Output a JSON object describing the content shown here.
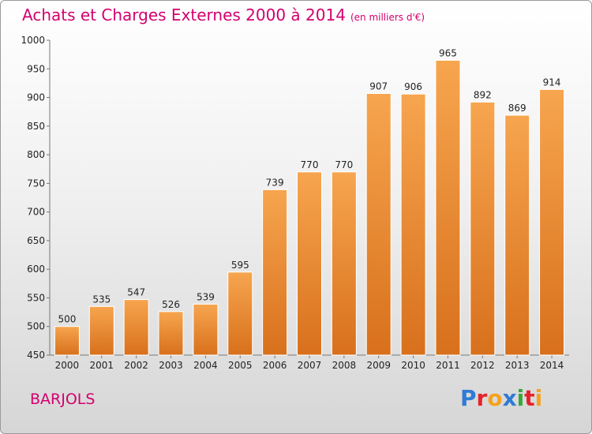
{
  "header": {
    "title": "Achats et Charges Externes 2000 à 2014",
    "subtitle": "(en milliers d'€)"
  },
  "footer": {
    "commune": "BARJOLS",
    "logo_letters": [
      "P",
      "r",
      "o",
      "x",
      "i",
      "t",
      "i"
    ]
  },
  "colors": {
    "title": "#d4006e",
    "bar_top": "#f7a54f",
    "bar_bottom": "#d8701c"
  },
  "chart_data": {
    "type": "bar",
    "title": "Achats et Charges Externes 2000 à 2014",
    "subtitle": "(en milliers d'€)",
    "xlabel": "",
    "ylabel": "",
    "categories": [
      "2000",
      "2001",
      "2002",
      "2003",
      "2004",
      "2005",
      "2006",
      "2007",
      "2008",
      "2009",
      "2010",
      "2011",
      "2012",
      "2013",
      "2014"
    ],
    "values": [
      500,
      535,
      547,
      526,
      539,
      595,
      739,
      770,
      770,
      907,
      906,
      965,
      892,
      869,
      914
    ],
    "ylim": [
      450,
      1000
    ],
    "yticks": [
      450,
      500,
      550,
      600,
      650,
      700,
      750,
      800,
      850,
      900,
      950,
      1000
    ],
    "grid": false,
    "legend": "none"
  }
}
